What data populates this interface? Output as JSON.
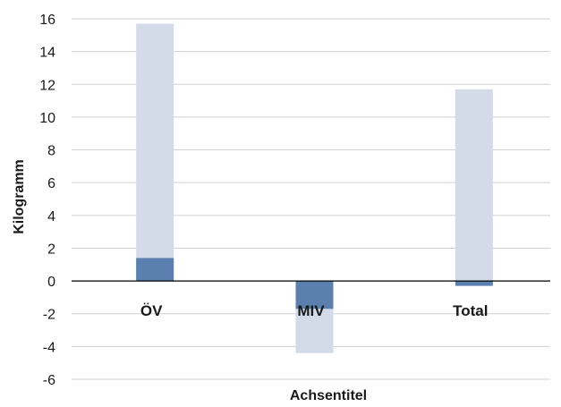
{
  "chart_data": {
    "type": "bar",
    "categories": [
      "ÖV",
      "MIV",
      "Total"
    ],
    "series": [
      {
        "values": [
          15.7,
          -4.4,
          11.7
        ],
        "color": "#d3dbe9"
      },
      {
        "values": [
          1.4,
          -1.7,
          -0.3
        ],
        "color": "#5b7fae"
      }
    ],
    "xlabel": "Achsentitel",
    "ylabel": "Kilogramm",
    "ylim": [
      -6,
      16
    ],
    "yticks": [
      -6,
      -4,
      -2,
      0,
      2,
      4,
      6,
      8,
      10,
      12,
      14,
      16
    ],
    "grid": true,
    "legend": "none"
  }
}
